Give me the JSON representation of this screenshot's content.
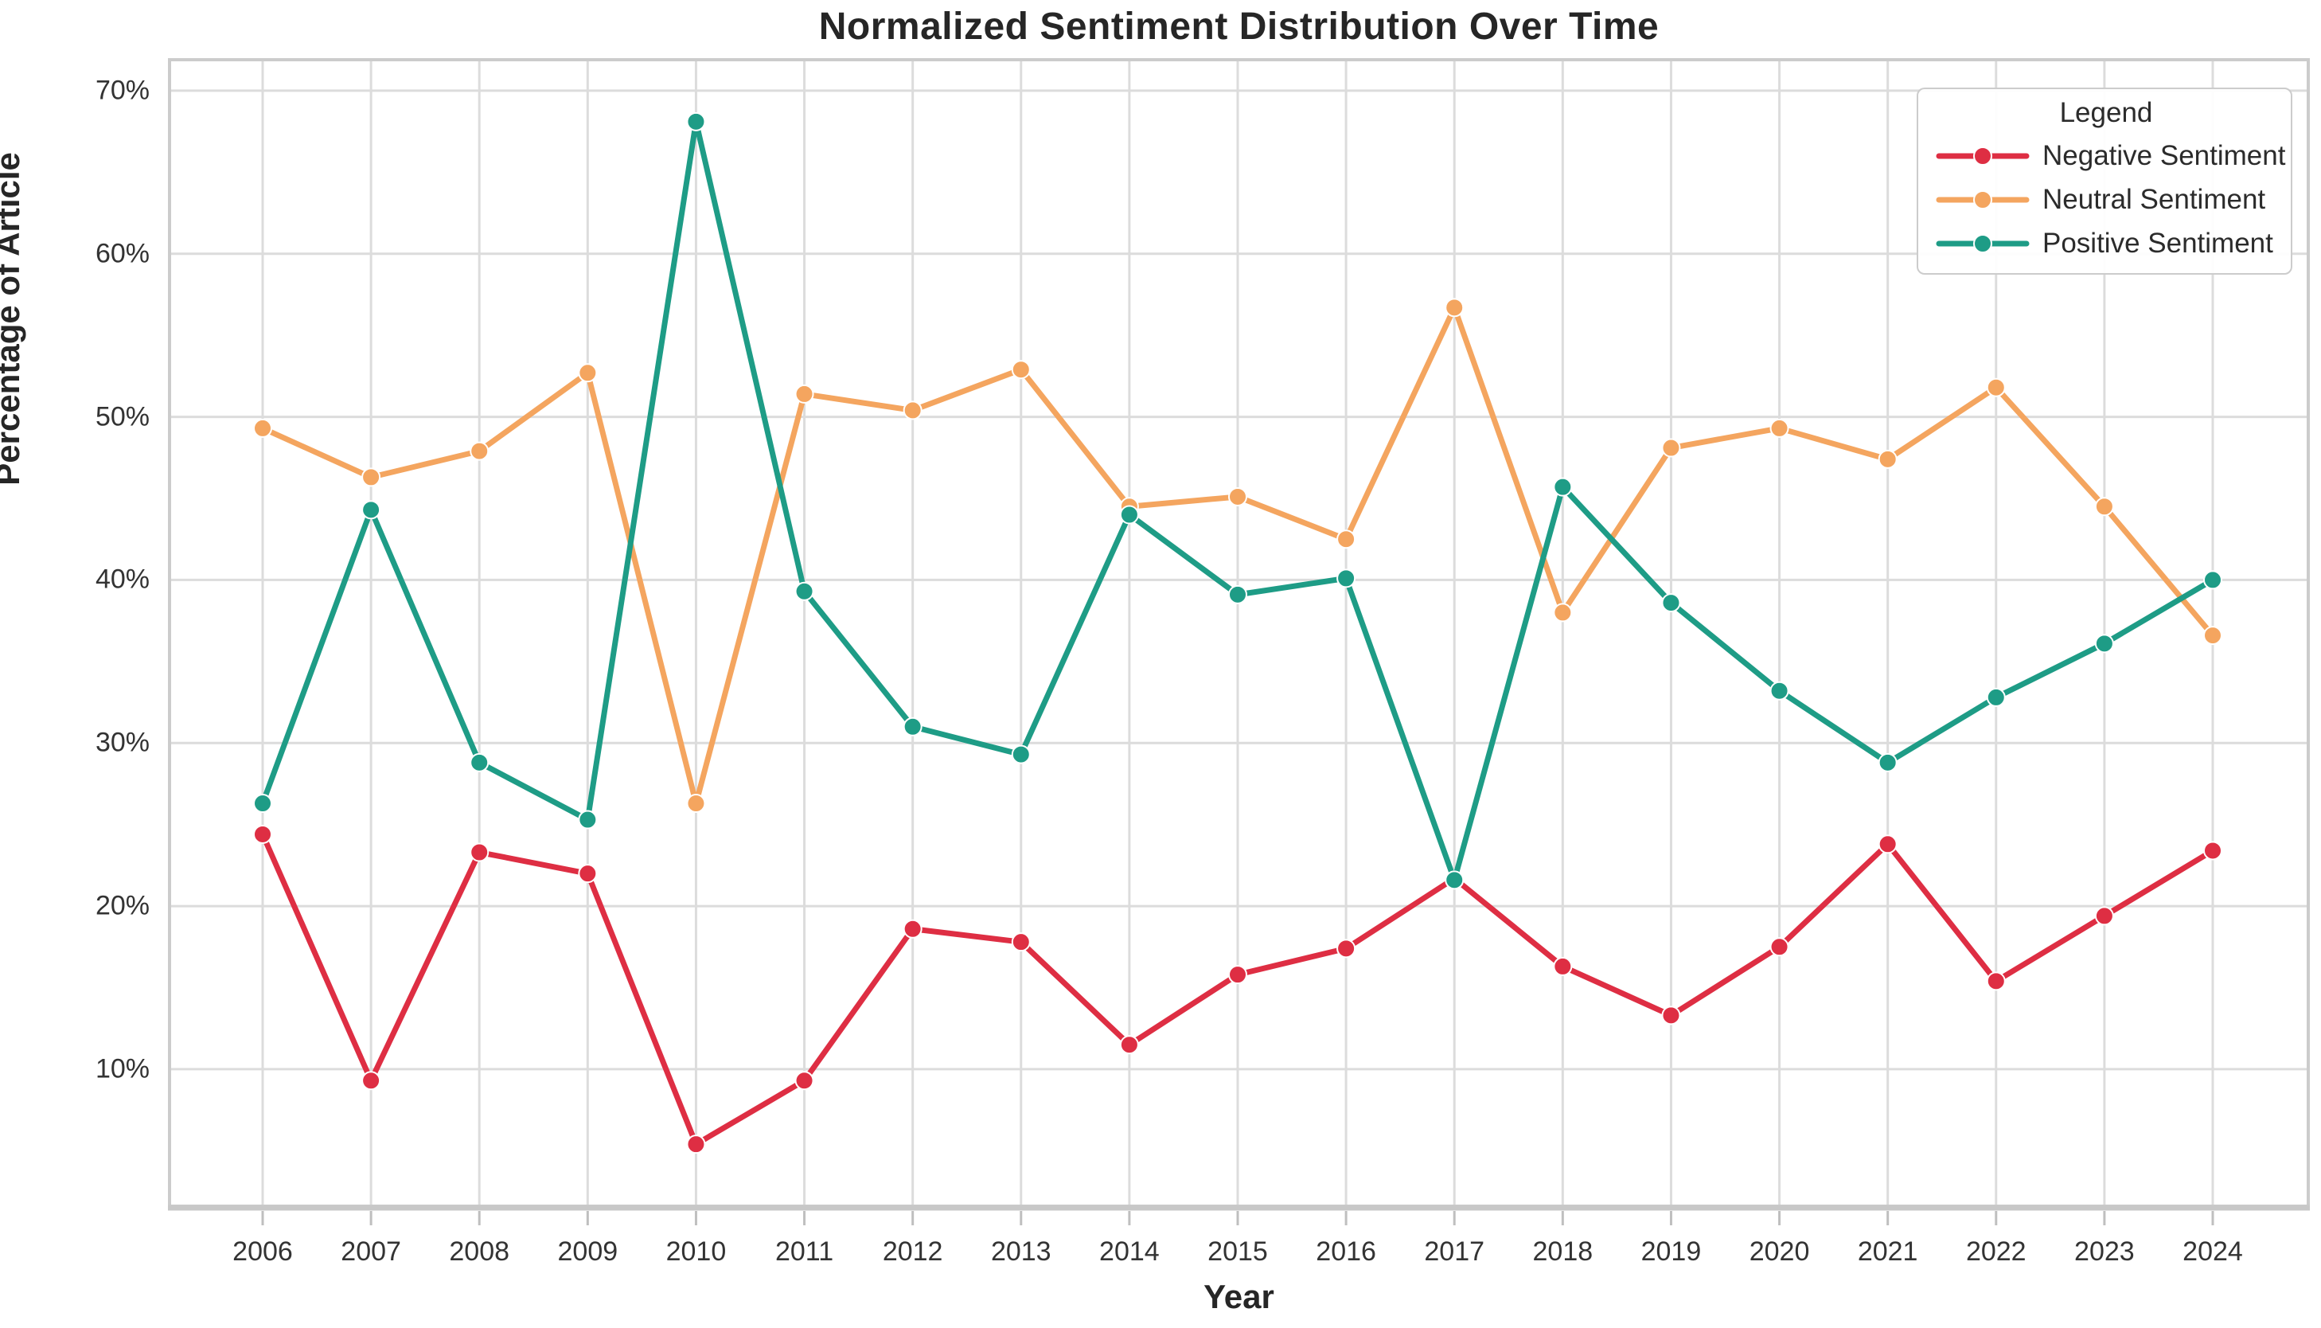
{
  "figure": {
    "title": "Normalized Sentiment Distribution Over Time",
    "x_axis_label": "Year",
    "y_axis_label": "Percentage of Article",
    "legend_title": "Legend",
    "background_color": "#ffffff",
    "grid_color": "#dcdcdc",
    "spine_color": "#cccccc",
    "tick_color": "#bfbfbf",
    "text_color": "#333333"
  },
  "chart_data": {
    "type": "line",
    "title": "Normalized Sentiment Distribution Over Time",
    "xlabel": "Year",
    "ylabel": "Percentage of Article",
    "categories": [
      "2006",
      "2007",
      "2008",
      "2009",
      "2010",
      "2011",
      "2012",
      "2013",
      "2014",
      "2015",
      "2016",
      "2017",
      "2018",
      "2019",
      "2020",
      "2021",
      "2022",
      "2023",
      "2024"
    ],
    "y_tick_labels": [
      "10%",
      "20%",
      "30%",
      "40%",
      "50%",
      "60%",
      "70%"
    ],
    "y_tick_values": [
      10,
      20,
      30,
      40,
      50,
      60,
      70
    ],
    "ylim": [
      1.6,
      71.9
    ],
    "grid": true,
    "legend_position": "upper right",
    "marker": "circle",
    "series": [
      {
        "name": "Negative Sentiment",
        "color": "#de2e43",
        "values": [
          24.4,
          9.3,
          23.3,
          22.0,
          5.4,
          9.3,
          18.6,
          17.8,
          11.5,
          15.8,
          17.4,
          21.7,
          16.3,
          13.3,
          17.5,
          23.8,
          15.4,
          19.4,
          23.4
        ]
      },
      {
        "name": "Neutral Sentiment",
        "color": "#f4a55f",
        "values": [
          49.3,
          46.3,
          47.9,
          52.7,
          26.3,
          51.4,
          50.4,
          52.9,
          44.5,
          45.1,
          42.5,
          56.7,
          38.0,
          48.1,
          49.3,
          47.4,
          51.8,
          44.5,
          36.6
        ]
      },
      {
        "name": "Positive Sentiment",
        "color": "#1e9c86",
        "values": [
          26.3,
          44.3,
          28.8,
          25.3,
          68.1,
          39.3,
          31.0,
          29.3,
          44.0,
          39.1,
          40.1,
          21.6,
          45.7,
          38.6,
          33.2,
          28.8,
          32.8,
          36.1,
          40.0
        ]
      }
    ]
  }
}
